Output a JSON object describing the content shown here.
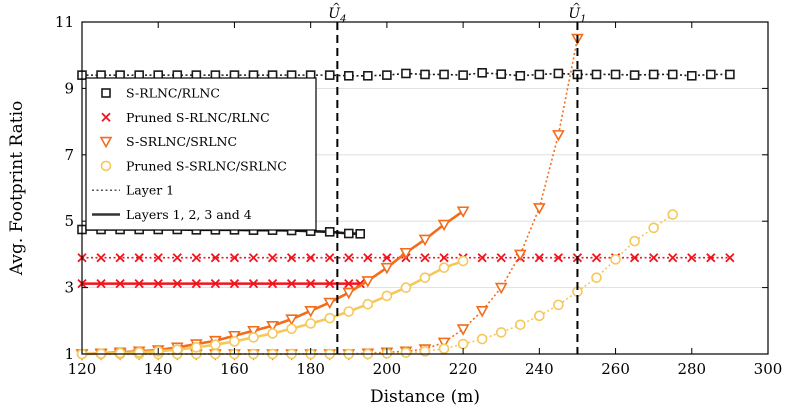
{
  "chart_data": {
    "type": "line",
    "xlabel": "Distance (m)",
    "ylabel": "Avg. Footprint Ratio",
    "xlim": [
      120,
      300
    ],
    "ylim": [
      1,
      11
    ],
    "xticks": [
      "120",
      "140",
      "160",
      "180",
      "200",
      "220",
      "240",
      "260",
      "280",
      "300"
    ],
    "yticks": [
      "1",
      "3",
      "5",
      "7",
      "9",
      "11"
    ],
    "xtick_values": [
      120,
      140,
      160,
      180,
      200,
      220,
      240,
      260,
      280,
      300
    ],
    "ytick_values": [
      1,
      3,
      5,
      7,
      9,
      11
    ],
    "vlines": [
      {
        "label_base": "U",
        "label_sub": "4",
        "x": 187
      },
      {
        "label_base": "U",
        "label_sub": "1",
        "x": 250
      }
    ],
    "legend": {
      "placement": "upper-left",
      "entries": [
        {
          "label": "S-RLNC/RLNC",
          "marker": "square",
          "color": "#1a1a1a"
        },
        {
          "label": "Pruned S-RLNC/RLNC",
          "marker": "x",
          "color": "#f0141e"
        },
        {
          "label": "S-SRLNC/SRLNC",
          "marker": "triangle-down",
          "color": "#f26c1c"
        },
        {
          "label": "Pruned S-SRLNC/SRLNC",
          "marker": "circle",
          "color": "#f5c85c"
        },
        {
          "label": "Layer 1",
          "marker": "none",
          "line": "dotted",
          "color": "#555555"
        },
        {
          "label": "Layers 1, 2, 3 and 4",
          "marker": "none",
          "line": "solid",
          "color": "#333333"
        }
      ]
    },
    "series": [
      {
        "name": "S-RLNC/RLNC (Layer 1)",
        "color": "#1a1a1a",
        "marker": "square",
        "line": "dotted",
        "x": [
          120,
          125,
          130,
          135,
          140,
          145,
          150,
          155,
          160,
          165,
          170,
          175,
          180,
          185,
          190,
          195,
          200,
          205,
          210,
          215,
          220,
          225,
          230,
          235,
          240,
          245,
          250,
          255,
          260,
          265,
          270,
          275,
          280,
          285,
          290
        ],
        "y": [
          9.4,
          9.4,
          9.4,
          9.4,
          9.4,
          9.4,
          9.4,
          9.4,
          9.4,
          9.4,
          9.4,
          9.4,
          9.4,
          9.4,
          9.38,
          9.38,
          9.4,
          9.45,
          9.42,
          9.42,
          9.4,
          9.47,
          9.43,
          9.38,
          9.42,
          9.45,
          9.42,
          9.42,
          9.42,
          9.4,
          9.42,
          9.42,
          9.38,
          9.42,
          9.42
        ]
      },
      {
        "name": "S-RLNC/RLNC (Layers 1, 2, 3 and 4)",
        "color": "#1a1a1a",
        "marker": "square",
        "line": "solid",
        "x": [
          120,
          125,
          130,
          135,
          140,
          145,
          150,
          155,
          160,
          165,
          170,
          175,
          180,
          185,
          190,
          193
        ],
        "y": [
          4.75,
          4.75,
          4.75,
          4.75,
          4.75,
          4.75,
          4.74,
          4.74,
          4.74,
          4.73,
          4.73,
          4.72,
          4.7,
          4.68,
          4.63,
          4.62
        ]
      },
      {
        "name": "Pruned S-RLNC/RLNC (Layer 1)",
        "color": "#f0141e",
        "marker": "x",
        "line": "dotted",
        "x": [
          120,
          125,
          130,
          135,
          140,
          145,
          150,
          155,
          160,
          165,
          170,
          175,
          180,
          185,
          190,
          195,
          200,
          205,
          210,
          215,
          220,
          225,
          230,
          235,
          240,
          245,
          250,
          255,
          260,
          265,
          270,
          275,
          280,
          285,
          290
        ],
        "y": [
          3.9,
          3.9,
          3.9,
          3.9,
          3.9,
          3.9,
          3.9,
          3.9,
          3.9,
          3.9,
          3.9,
          3.9,
          3.9,
          3.9,
          3.9,
          3.9,
          3.9,
          3.9,
          3.9,
          3.9,
          3.9,
          3.9,
          3.9,
          3.9,
          3.9,
          3.9,
          3.9,
          3.9,
          3.9,
          3.9,
          3.9,
          3.9,
          3.9,
          3.9,
          3.9
        ]
      },
      {
        "name": "Pruned S-RLNC/RLNC (Layers 1, 2, 3 and 4)",
        "color": "#f0141e",
        "marker": "x",
        "line": "solid",
        "x": [
          120,
          125,
          130,
          135,
          140,
          145,
          150,
          155,
          160,
          165,
          170,
          175,
          180,
          185,
          190,
          193
        ],
        "y": [
          3.12,
          3.12,
          3.12,
          3.12,
          3.12,
          3.12,
          3.12,
          3.12,
          3.12,
          3.12,
          3.12,
          3.12,
          3.12,
          3.12,
          3.12,
          3.12
        ]
      },
      {
        "name": "S-SRLNC/SRLNC (Layer 1)",
        "color": "#f26c1c",
        "marker": "triangle-down",
        "line": "dotted",
        "x": [
          120,
          125,
          130,
          135,
          140,
          145,
          150,
          155,
          160,
          165,
          170,
          175,
          180,
          185,
          190,
          195,
          200,
          205,
          210,
          215,
          220,
          225,
          230,
          235,
          240,
          245,
          250
        ],
        "y": [
          1.0,
          1.0,
          1.0,
          1.0,
          1.0,
          1.0,
          1.0,
          1.0,
          1.0,
          1.0,
          1.0,
          1.0,
          1.0,
          1.0,
          1.0,
          1.02,
          1.05,
          1.08,
          1.15,
          1.35,
          1.75,
          2.3,
          3.0,
          4.0,
          5.4,
          7.6,
          10.5
        ]
      },
      {
        "name": "S-SRLNC/SRLNC (Layers 1, 2, 3 and 4)",
        "color": "#f26c1c",
        "marker": "triangle-down",
        "line": "solid",
        "x": [
          120,
          125,
          130,
          135,
          140,
          145,
          150,
          155,
          160,
          165,
          170,
          175,
          180,
          185,
          190,
          195,
          200,
          205,
          210,
          215,
          220
        ],
        "y": [
          1.0,
          1.02,
          1.05,
          1.08,
          1.12,
          1.2,
          1.3,
          1.4,
          1.55,
          1.7,
          1.85,
          2.05,
          2.3,
          2.55,
          2.85,
          3.2,
          3.6,
          4.05,
          4.45,
          4.9,
          5.3
        ]
      },
      {
        "name": "Pruned S-SRLNC/SRLNC (Layer 1)",
        "color": "#f5c85c",
        "marker": "circle",
        "line": "dotted",
        "x": [
          120,
          125,
          130,
          135,
          140,
          145,
          150,
          155,
          160,
          165,
          170,
          175,
          180,
          185,
          190,
          195,
          200,
          205,
          210,
          215,
          220,
          225,
          230,
          235,
          240,
          245,
          250,
          255,
          260,
          265,
          270,
          275
        ],
        "y": [
          1.0,
          1.0,
          1.0,
          1.0,
          1.0,
          1.0,
          1.0,
          1.0,
          1.0,
          1.0,
          1.0,
          1.0,
          1.0,
          1.0,
          1.0,
          1.0,
          1.02,
          1.04,
          1.08,
          1.16,
          1.3,
          1.45,
          1.65,
          1.88,
          2.15,
          2.48,
          2.88,
          3.3,
          3.85,
          4.4,
          4.8,
          5.2
        ]
      },
      {
        "name": "Pruned S-SRLNC/SRLNC (Layers 1, 2, 3 and 4)",
        "color": "#f5c85c",
        "marker": "circle",
        "line": "solid",
        "x": [
          120,
          125,
          130,
          135,
          140,
          145,
          150,
          155,
          160,
          165,
          170,
          175,
          180,
          185,
          190,
          195,
          200,
          205,
          210,
          215,
          220
        ],
        "y": [
          1.0,
          1.01,
          1.03,
          1.05,
          1.08,
          1.13,
          1.2,
          1.28,
          1.38,
          1.5,
          1.62,
          1.76,
          1.92,
          2.08,
          2.28,
          2.5,
          2.75,
          3.0,
          3.3,
          3.6,
          3.8
        ]
      }
    ]
  }
}
